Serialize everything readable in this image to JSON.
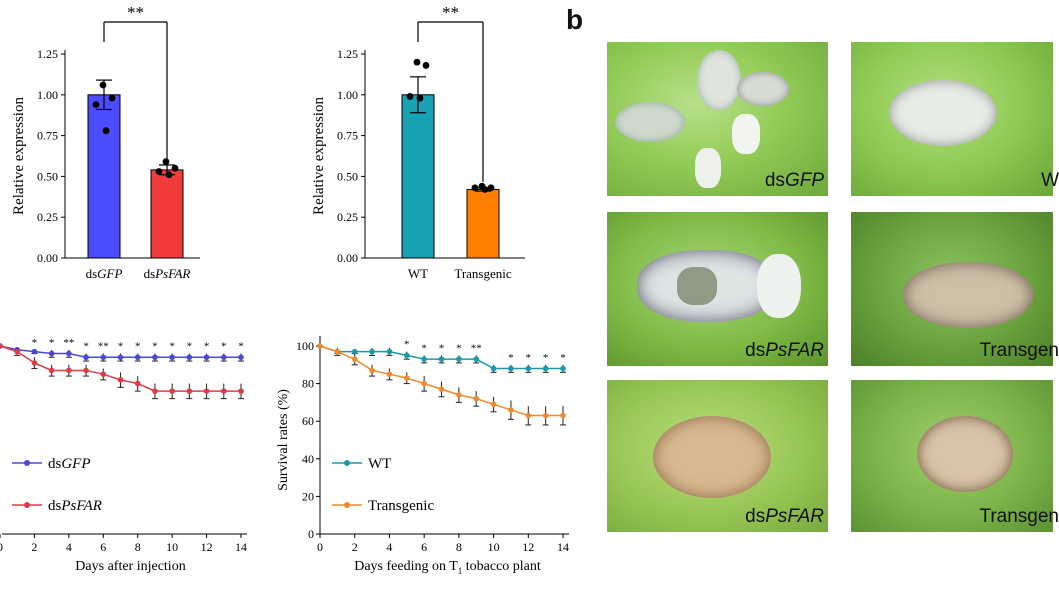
{
  "panel_b_letter": "b",
  "photos": [
    {
      "label_pre": "ds",
      "label_it": "GFP"
    },
    {
      "label_pre": "W",
      "label_it": ""
    },
    {
      "label_pre": "ds",
      "label_it": "PsFAR"
    },
    {
      "label_pre": "Transgen",
      "label_it": ""
    },
    {
      "label_pre": "ds",
      "label_it": "PsFAR"
    },
    {
      "label_pre": "Transgen",
      "label_it": ""
    }
  ],
  "chart_data": [
    {
      "id": "bar1",
      "type": "bar",
      "ylabel": "Relative expression",
      "ylim": [
        0,
        1.25
      ],
      "yticks": [
        "0.00",
        "0.25",
        "0.50",
        "0.75",
        "1.00",
        "1.25"
      ],
      "categories": [
        {
          "pre": "ds",
          "it": "GFP"
        },
        {
          "pre": "ds",
          "it": "PsFAR"
        }
      ],
      "values": [
        1.0,
        0.54
      ],
      "errors": [
        0.09,
        0.03
      ],
      "colors": [
        "#4d4dff",
        "#f23c3c"
      ],
      "points": [
        [
          1.06,
          0.98,
          0.94,
          0.78
        ],
        [
          0.59,
          0.55,
          0.53,
          0.51
        ]
      ],
      "significance": "**"
    },
    {
      "id": "bar2",
      "type": "bar",
      "ylabel": "Relative expression",
      "ylim": [
        0,
        1.25
      ],
      "yticks": [
        "0.00",
        "0.25",
        "0.50",
        "0.75",
        "1.00",
        "1.25"
      ],
      "categories": [
        {
          "pre": "WT",
          "it": ""
        },
        {
          "pre": "Transgenic",
          "it": ""
        }
      ],
      "values": [
        1.0,
        0.42
      ],
      "errors": [
        0.11,
        0.01
      ],
      "colors": [
        "#17a2b3",
        "#ff7f00"
      ],
      "points": [
        [
          1.2,
          1.18,
          0.99,
          0.98
        ],
        [
          0.44,
          0.43,
          0.43,
          0.42
        ]
      ],
      "significance": "**"
    },
    {
      "id": "line1",
      "type": "line",
      "xlabel": "Days after injection",
      "xticks": [
        "0",
        "2",
        "4",
        "6",
        "8",
        "10",
        "12",
        "14"
      ],
      "xlim": [
        0,
        14
      ],
      "ylim": [
        0,
        100
      ],
      "x": [
        0,
        1,
        2,
        3,
        4,
        5,
        6,
        7,
        8,
        9,
        10,
        11,
        12,
        13,
        14
      ],
      "series": [
        {
          "name_pre": "ds",
          "name_it": "GFP",
          "color": "#4a4ad6",
          "values": [
            100,
            98,
            97,
            96,
            96,
            94,
            94,
            94,
            94,
            94,
            94,
            94,
            94,
            94,
            94
          ],
          "err": [
            0,
            1,
            1,
            2,
            2,
            2,
            2,
            2,
            2,
            2,
            2,
            2,
            2,
            2,
            2
          ]
        },
        {
          "name_pre": "ds",
          "name_it": "PsFAR",
          "color": "#e03a46",
          "values": [
            100,
            97,
            91,
            87,
            87,
            87,
            85,
            82,
            80,
            76,
            76,
            76,
            76,
            76,
            76
          ],
          "err": [
            0,
            2,
            3,
            3,
            3,
            3,
            3,
            4,
            4,
            4,
            4,
            4,
            4,
            4,
            4
          ]
        }
      ],
      "sig_labels": [
        "",
        "",
        "*",
        "*",
        "**",
        "*",
        "**",
        "*",
        "*",
        "*",
        "*",
        "*",
        "*",
        "*",
        "*"
      ]
    },
    {
      "id": "line2",
      "type": "line",
      "xlabel_pre": "Days feeding on T",
      "xlabel_sub": "1",
      "xlabel_post": " tobacco plant",
      "ylabel": "Survival rates (%)",
      "xticks": [
        "0",
        "2",
        "4",
        "6",
        "8",
        "10",
        "12",
        "14"
      ],
      "yticks": [
        "0",
        "20",
        "40",
        "60",
        "80",
        "100"
      ],
      "xlim": [
        0,
        14
      ],
      "ylim": [
        0,
        100
      ],
      "x": [
        0,
        1,
        2,
        3,
        4,
        5,
        6,
        7,
        8,
        9,
        10,
        11,
        12,
        13,
        14
      ],
      "series": [
        {
          "name_pre": "WT",
          "name_it": "",
          "color": "#1a9aa8",
          "values": [
            100,
            97,
            97,
            97,
            97,
            95,
            93,
            93,
            93,
            93,
            88,
            88,
            88,
            88,
            88
          ],
          "err": [
            0,
            1,
            1,
            2,
            2,
            2,
            2,
            2,
            2,
            2,
            2,
            2,
            2,
            2,
            2
          ]
        },
        {
          "name_pre": "Transgenic",
          "name_it": "",
          "color": "#f08a2c",
          "values": [
            100,
            97,
            93,
            87,
            85,
            83,
            80,
            77,
            74,
            72,
            69,
            66,
            63,
            63,
            63
          ],
          "err": [
            0,
            2,
            3,
            3,
            3,
            3,
            4,
            4,
            4,
            4,
            4,
            5,
            5,
            5,
            5
          ]
        }
      ],
      "sig_labels": [
        "",
        "",
        "",
        "",
        "",
        "*",
        "*",
        "*",
        "*",
        "**",
        "",
        "*",
        "*",
        "*",
        "*"
      ]
    }
  ]
}
